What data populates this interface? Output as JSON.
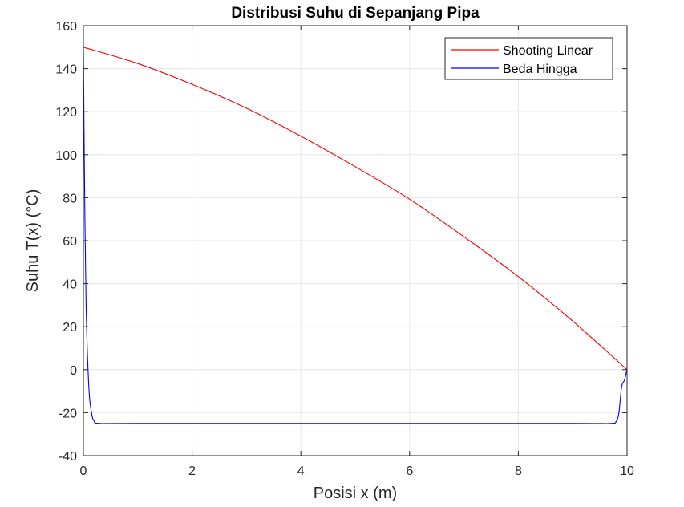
{
  "chart_data": {
    "type": "line",
    "title": "Distribusi Suhu di Sepanjang Pipa",
    "xlabel": "Posisi x (m)",
    "ylabel": "Suhu T(x) (°C)",
    "xlim": [
      0,
      10
    ],
    "ylim": [
      -40,
      160
    ],
    "x_ticks": [
      "0",
      "2",
      "4",
      "6",
      "8",
      "10"
    ],
    "y_ticks": [
      "-40",
      "-20",
      "0",
      "20",
      "40",
      "60",
      "80",
      "100",
      "120",
      "140",
      "160"
    ],
    "x_tick_values": [
      0,
      2,
      4,
      6,
      8,
      10
    ],
    "y_tick_values": [
      -40,
      -20,
      0,
      20,
      40,
      60,
      80,
      100,
      120,
      140,
      160
    ],
    "grid": true,
    "legend_position": "top-right",
    "series": [
      {
        "name": "Shooting Linear",
        "color": "#ff0000",
        "x": [
          0,
          1,
          2,
          3,
          4,
          5,
          6,
          7,
          8,
          9,
          10
        ],
        "y": [
          150,
          142.4,
          132.7,
          121.6,
          108.6,
          94.4,
          79.3,
          61.8,
          43.3,
          22.6,
          0
        ]
      },
      {
        "name": "Beda Hingga",
        "color": "#0000ff",
        "x": [
          0,
          0.02,
          0.05,
          0.1,
          0.15,
          0.2,
          0.3,
          1,
          5,
          9,
          9.7,
          9.8,
          9.85,
          9.9,
          9.95,
          9.98,
          10
        ],
        "y": [
          150,
          90,
          30,
          -8,
          -20,
          -24,
          -25,
          -25,
          -25,
          -25,
          -25,
          -24,
          -20,
          -8,
          -5,
          -2,
          0
        ]
      }
    ]
  }
}
